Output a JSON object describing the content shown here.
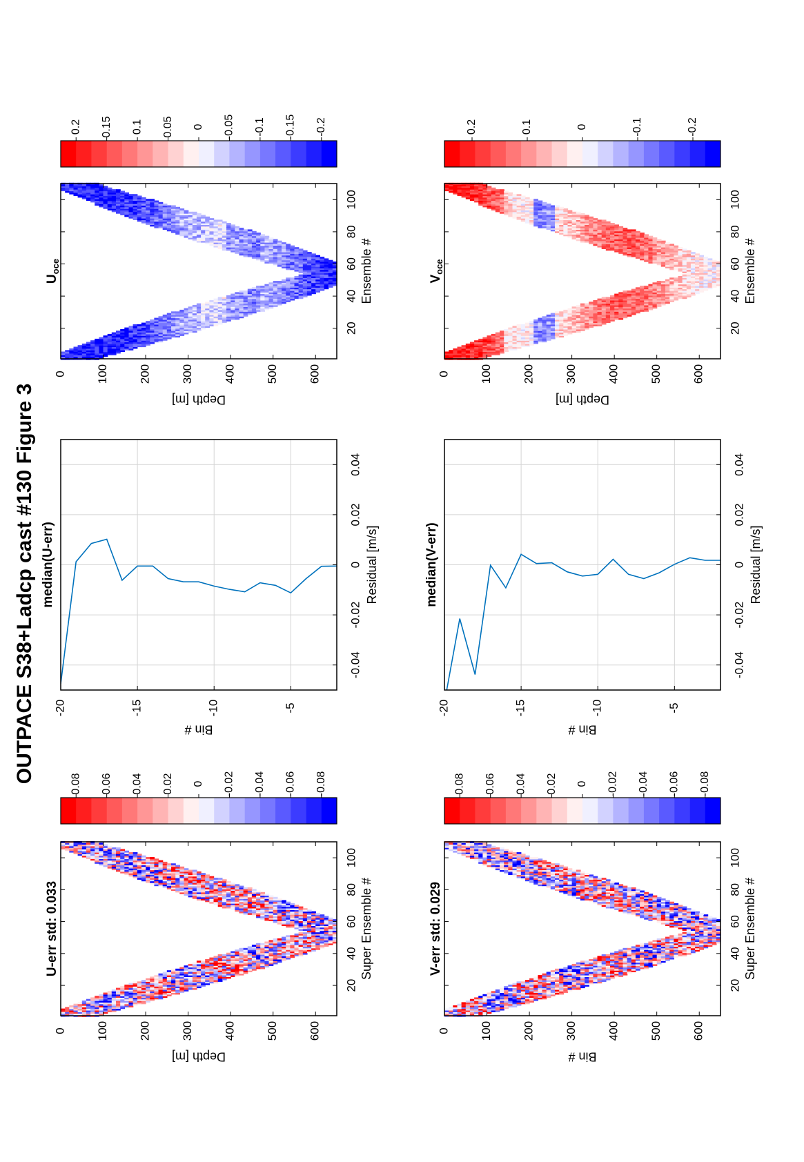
{
  "figure": {
    "title": "OUTPACE S38+Ladcp cast #130  Figure 3"
  },
  "colors": {
    "line": "#0072bd",
    "frame": "#000000",
    "grid": "#d4d4d4",
    "red": "#ff0000",
    "blue": "#0000ff"
  },
  "chart_data": [
    {
      "id": "u-err",
      "type": "heatmap",
      "title": "U-err std: 0.033",
      "xlabel": "Super Ensemble #",
      "ylabel": "Depth [m]",
      "xlim": [
        1,
        110
      ],
      "ylim": [
        0,
        650
      ],
      "xticks": [
        "20",
        "40",
        "60",
        "80",
        "100"
      ],
      "yticks": [
        "0",
        "100",
        "200",
        "300",
        "400",
        "500",
        "600"
      ],
      "colorbar": {
        "ticks": [
          "0.08",
          "0.06",
          "0.04",
          "0.02",
          "0",
          "-0.02",
          "-0.04",
          "-0.06",
          "-0.08"
        ],
        "range": [
          -0.09,
          0.09
        ],
        "levels": 18
      },
      "pattern": {
        "turn_ensemble": 54,
        "max_depth": 640,
        "amplitude": 0.09,
        "seed": 11
      }
    },
    {
      "id": "median-u",
      "type": "line",
      "title": "median(U-err)",
      "xlabel": "Residual [m/s]",
      "ylabel": "Bin #",
      "xlim": [
        -0.05,
        0.05
      ],
      "ylim": [
        -20,
        -2
      ],
      "xticks": [
        "-0.04",
        "-0.02",
        "0",
        "0.02",
        "0.04"
      ],
      "yticks": [
        "-5",
        "-10",
        "-15",
        "-20"
      ],
      "x": [
        -0.0005,
        -0.0006,
        -0.0055,
        -0.0112,
        -0.0082,
        -0.0072,
        -0.0108,
        -0.0098,
        -0.0085,
        -0.0068,
        -0.0068,
        -0.0055,
        -0.0005,
        -0.0005,
        -0.0062,
        0.0102,
        0.0085,
        0.0012,
        -0.0475
      ],
      "y": [
        -2,
        -3,
        -4,
        -5,
        -6,
        -7,
        -8,
        -9,
        -10,
        -11,
        -12,
        -13,
        -14,
        -15,
        -16,
        -17,
        -18,
        -19,
        -20
      ]
    },
    {
      "id": "u-oce",
      "type": "heatmap",
      "title": "U",
      "title_sub": "oce",
      "xlabel": "Ensemble #",
      "ylabel": "Depth [m]",
      "xlim": [
        1,
        110
      ],
      "ylim": [
        0,
        650
      ],
      "xticks": [
        "20",
        "40",
        "60",
        "80",
        "100"
      ],
      "yticks": [
        "0",
        "100",
        "200",
        "300",
        "400",
        "500",
        "600"
      ],
      "colorbar": {
        "ticks": [
          "0.2",
          "0.15",
          "0.1",
          "0.05",
          "0",
          "-0.05",
          "-0.1",
          "-0.15",
          "-0.2"
        ],
        "range": [
          -0.225,
          0.225
        ],
        "levels": 18
      },
      "pattern": {
        "turn_ensemble": 54,
        "max_depth": 640,
        "amplitude": 0.22,
        "seed": 23,
        "bias": "u"
      }
    },
    {
      "id": "v-err",
      "type": "heatmap",
      "title": "V-err std: 0.029",
      "xlabel": "Super Ensemble #",
      "ylabel": "Bin #",
      "xlim": [
        1,
        110
      ],
      "ylim": [
        0,
        650
      ],
      "xticks": [
        "20",
        "40",
        "60",
        "80",
        "100"
      ],
      "yticks": [
        "0",
        "100",
        "200",
        "300",
        "400",
        "500",
        "600"
      ],
      "colorbar": {
        "ticks": [
          "0.08",
          "0.06",
          "0.04",
          "0.02",
          "0",
          "-0.02",
          "-0.04",
          "-0.06",
          "-0.08"
        ],
        "range": [
          -0.09,
          0.09
        ],
        "levels": 18
      },
      "pattern": {
        "turn_ensemble": 54,
        "max_depth": 640,
        "amplitude": 0.09,
        "seed": 37
      }
    },
    {
      "id": "median-v",
      "type": "line",
      "title": "median(V-err)",
      "xlabel": "Residual [m/s]",
      "ylabel": "Bin #",
      "xlim": [
        -0.05,
        0.05
      ],
      "ylim": [
        -20,
        -2
      ],
      "xticks": [
        "-0.04",
        "-0.02",
        "0",
        "0.02",
        "0.04"
      ],
      "yticks": [
        "-5",
        "-10",
        "-15",
        "-20"
      ],
      "x": [
        0.0018,
        0.0018,
        0.0028,
        0.0002,
        -0.0032,
        -0.0055,
        -0.0038,
        0.0022,
        -0.0038,
        -0.0045,
        -0.0028,
        0.0008,
        0.0005,
        0.0042,
        -0.0092,
        -0.0002,
        -0.0438,
        -0.0215,
        -0.055
      ],
      "y": [
        -2,
        -3,
        -4,
        -5,
        -6,
        -7,
        -8,
        -9,
        -10,
        -11,
        -12,
        -13,
        -14,
        -15,
        -16,
        -17,
        -18,
        -19,
        -20
      ]
    },
    {
      "id": "v-oce",
      "type": "heatmap",
      "title": "V",
      "title_sub": "oce",
      "xlabel": "Ensemble #",
      "ylabel": "Depth [m]",
      "xlim": [
        1,
        110
      ],
      "ylim": [
        0,
        650
      ],
      "xticks": [
        "20",
        "40",
        "60",
        "80",
        "100"
      ],
      "yticks": [
        "0",
        "100",
        "200",
        "300",
        "400",
        "500",
        "600"
      ],
      "colorbar": {
        "ticks": [
          "0.2",
          "0.1",
          "0",
          "-0.1",
          "-0.2"
        ],
        "range": [
          -0.25,
          0.25
        ],
        "levels": 18
      },
      "pattern": {
        "turn_ensemble": 54,
        "max_depth": 640,
        "amplitude": 0.22,
        "seed": 59,
        "bias": "v"
      }
    }
  ]
}
